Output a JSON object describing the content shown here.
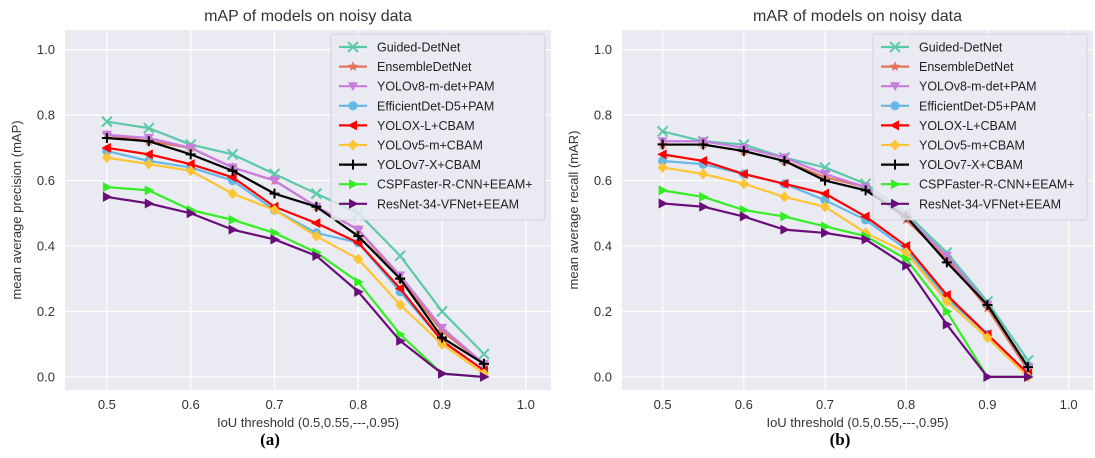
{
  "figure": {
    "captions": [
      "(a)",
      "(b)"
    ]
  },
  "series_styles": [
    {
      "name": "Guided-DetNet",
      "color": "#5cc9a8",
      "marker": "x"
    },
    {
      "name": "EnsembleDetNet",
      "color": "#e3735a",
      "marker": "star"
    },
    {
      "name": "YOLOv8-m-det+PAM",
      "color": "#c77ce0",
      "marker": "triangle-down"
    },
    {
      "name": "EfficientDet-D5+PAM",
      "color": "#65b8e6",
      "marker": "circle"
    },
    {
      "name": "YOLOX-L+CBAM",
      "color": "#ff0000",
      "marker": "triangle-left"
    },
    {
      "name": "YOLOv5-m+CBAM",
      "color": "#ffc433",
      "marker": "diamond"
    },
    {
      "name": "YOLOv7-X+CBAM",
      "color": "#000000",
      "marker": "plus"
    },
    {
      "name": "CSPFaster-R-CNN+EEAM+",
      "color": "#33ee22",
      "marker": "triangle-right"
    },
    {
      "name": "ResNet-34-VFNet+EEAM",
      "color": "#6a0c7a",
      "marker": "triangle-right"
    }
  ],
  "chart_data": [
    {
      "type": "line",
      "title": "mAP of models on noisy data",
      "xlabel": "IoU threshold (0.5,0.55,---,0.95)",
      "ylabel": "mean average precision (mAP)",
      "xlim": [
        0.45,
        1.03
      ],
      "ylim": [
        -0.04,
        1.06
      ],
      "xticks": [
        "0.5",
        "0.6",
        "0.7",
        "0.8",
        "0.9",
        "1.0"
      ],
      "yticks": [
        "0.0",
        "0.2",
        "0.4",
        "0.6",
        "0.8",
        "1.0"
      ],
      "grid": true,
      "legend": "top-right",
      "x": [
        0.5,
        0.55,
        0.6,
        0.65,
        0.7,
        0.75,
        0.8,
        0.85,
        0.9,
        0.95
      ],
      "series": [
        {
          "name": "Guided-DetNet",
          "values": [
            0.78,
            0.76,
            0.71,
            0.68,
            0.62,
            0.56,
            0.5,
            0.37,
            0.2,
            0.07
          ]
        },
        {
          "name": "EnsembleDetNet",
          "values": [
            0.74,
            0.72,
            0.7,
            0.64,
            0.6,
            0.52,
            0.45,
            0.3,
            0.14,
            0.04
          ]
        },
        {
          "name": "YOLOv8-m-det+PAM",
          "values": [
            0.74,
            0.73,
            0.7,
            0.64,
            0.6,
            0.52,
            0.45,
            0.31,
            0.15,
            0.04
          ]
        },
        {
          "name": "EfficientDet-D5+PAM",
          "values": [
            0.69,
            0.66,
            0.64,
            0.6,
            0.51,
            0.44,
            0.41,
            0.26,
            0.11,
            0.02
          ]
        },
        {
          "name": "YOLOX-L+CBAM",
          "values": [
            0.7,
            0.68,
            0.65,
            0.61,
            0.52,
            0.47,
            0.41,
            0.27,
            0.11,
            0.02
          ]
        },
        {
          "name": "YOLOv5-m+CBAM",
          "values": [
            0.67,
            0.65,
            0.63,
            0.56,
            0.51,
            0.43,
            0.36,
            0.22,
            0.1,
            0.01
          ]
        },
        {
          "name": "YOLOv7-X+CBAM",
          "values": [
            0.73,
            0.72,
            0.68,
            0.63,
            0.56,
            0.52,
            0.43,
            0.3,
            0.12,
            0.04
          ]
        },
        {
          "name": "CSPFaster-R-CNN+EEAM+",
          "values": [
            0.58,
            0.57,
            0.51,
            0.48,
            0.44,
            0.38,
            0.29,
            0.13,
            0.01,
            0.0
          ]
        },
        {
          "name": "ResNet-34-VFNet+EEAM",
          "values": [
            0.55,
            0.53,
            0.5,
            0.45,
            0.42,
            0.37,
            0.26,
            0.11,
            0.01,
            0.0
          ]
        }
      ]
    },
    {
      "type": "line",
      "title": "mAR of models on noisy data",
      "xlabel": "IoU threshold (0.5,0.55,---,0.95)",
      "ylabel": "mean average recall (mAR)",
      "xlim": [
        0.45,
        1.03
      ],
      "ylim": [
        -0.04,
        1.06
      ],
      "xticks": [
        "0.5",
        "0.6",
        "0.7",
        "0.8",
        "0.9",
        "1.0"
      ],
      "yticks": [
        "0.0",
        "0.2",
        "0.4",
        "0.6",
        "0.8",
        "1.0"
      ],
      "grid": true,
      "legend": "top-right",
      "x": [
        0.5,
        0.55,
        0.6,
        0.65,
        0.7,
        0.75,
        0.8,
        0.85,
        0.9,
        0.95
      ],
      "series": [
        {
          "name": "Guided-DetNet",
          "values": [
            0.75,
            0.72,
            0.71,
            0.67,
            0.64,
            0.59,
            0.5,
            0.38,
            0.23,
            0.05
          ]
        },
        {
          "name": "EnsembleDetNet",
          "values": [
            0.71,
            0.71,
            0.69,
            0.66,
            0.61,
            0.58,
            0.48,
            0.36,
            0.21,
            0.02
          ]
        },
        {
          "name": "YOLOv8-m-det+PAM",
          "values": [
            0.72,
            0.72,
            0.7,
            0.67,
            0.62,
            0.58,
            0.49,
            0.37,
            0.22,
            0.03
          ]
        },
        {
          "name": "EfficientDet-D5+PAM",
          "values": [
            0.66,
            0.65,
            0.62,
            0.59,
            0.54,
            0.48,
            0.39,
            0.24,
            0.13,
            0.01
          ]
        },
        {
          "name": "YOLOX-L+CBAM",
          "values": [
            0.68,
            0.66,
            0.62,
            0.59,
            0.56,
            0.49,
            0.4,
            0.25,
            0.13,
            0.01
          ]
        },
        {
          "name": "YOLOv5-m+CBAM",
          "values": [
            0.64,
            0.62,
            0.59,
            0.55,
            0.52,
            0.44,
            0.38,
            0.23,
            0.12,
            0.0
          ]
        },
        {
          "name": "YOLOv7-X+CBAM",
          "values": [
            0.71,
            0.71,
            0.69,
            0.66,
            0.6,
            0.57,
            0.49,
            0.35,
            0.22,
            0.03
          ]
        },
        {
          "name": "CSPFaster-R-CNN+EEAM+",
          "values": [
            0.57,
            0.55,
            0.51,
            0.49,
            0.46,
            0.43,
            0.36,
            0.2,
            0.0,
            0.0
          ]
        },
        {
          "name": "ResNet-34-VFNet+EEAM",
          "values": [
            0.53,
            0.52,
            0.49,
            0.45,
            0.44,
            0.42,
            0.34,
            0.16,
            0.0,
            0.0
          ]
        }
      ]
    }
  ]
}
